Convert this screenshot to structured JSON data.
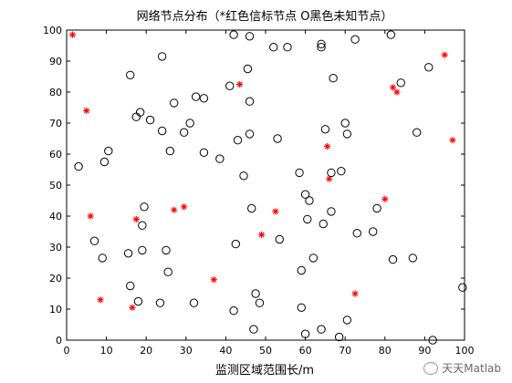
{
  "chart_data": {
    "type": "scatter",
    "title": "网络节点分布（*红色信标节点 O黑色未知节点）",
    "xlabel": "监测区域范围长/m",
    "ylabel": "",
    "xlim": [
      0,
      100
    ],
    "ylim": [
      0,
      100
    ],
    "xticks": [
      0,
      10,
      20,
      30,
      40,
      50,
      60,
      70,
      80,
      90,
      100
    ],
    "yticks": [
      0,
      10,
      20,
      30,
      40,
      50,
      60,
      70,
      80,
      90,
      100
    ],
    "grid": false,
    "legend": "none",
    "series": [
      {
        "marker": "asterisk",
        "color": "#ff0000",
        "points": [
          [
            1.5,
            98.5
          ],
          [
            5,
            74
          ],
          [
            6,
            40
          ],
          [
            8.5,
            13
          ],
          [
            16.5,
            10.5
          ],
          [
            17.5,
            39
          ],
          [
            27,
            42
          ],
          [
            29.5,
            43
          ],
          [
            37,
            19.5
          ],
          [
            43.5,
            82.5
          ],
          [
            49,
            34
          ],
          [
            52.5,
            41.5
          ],
          [
            65.5,
            62.5
          ],
          [
            66,
            52
          ],
          [
            72.5,
            15
          ],
          [
            80,
            45.5
          ],
          [
            82,
            81.5
          ],
          [
            83,
            80
          ],
          [
            95,
            92
          ],
          [
            97,
            64.5
          ]
        ]
      },
      {
        "marker": "circle",
        "color": "#000000",
        "points": [
          [
            3,
            56
          ],
          [
            7,
            32
          ],
          [
            9,
            26.5
          ],
          [
            9.5,
            57.5
          ],
          [
            10.5,
            61
          ],
          [
            15.5,
            28
          ],
          [
            16,
            85.5
          ],
          [
            16,
            17.5
          ],
          [
            17.5,
            72
          ],
          [
            18,
            12.5
          ],
          [
            18.5,
            73.5
          ],
          [
            19,
            37
          ],
          [
            19,
            29
          ],
          [
            19.5,
            43
          ],
          [
            21,
            71
          ],
          [
            23.5,
            12
          ],
          [
            24,
            91.5
          ],
          [
            24,
            67.5
          ],
          [
            25,
            29
          ],
          [
            25.5,
            22
          ],
          [
            26,
            61
          ],
          [
            27,
            76.5
          ],
          [
            29.5,
            67
          ],
          [
            31,
            70
          ],
          [
            32,
            12
          ],
          [
            32.5,
            78.5
          ],
          [
            34.5,
            60.5
          ],
          [
            34.5,
            78
          ],
          [
            38.5,
            58.5
          ],
          [
            41,
            82
          ],
          [
            42,
            98.5
          ],
          [
            42,
            9.5
          ],
          [
            42.5,
            31
          ],
          [
            43,
            64.5
          ],
          [
            44.5,
            53
          ],
          [
            45.5,
            87.5
          ],
          [
            46,
            98
          ],
          [
            46,
            66.5
          ],
          [
            46,
            77
          ],
          [
            46.5,
            42.5
          ],
          [
            47,
            3.5
          ],
          [
            47.5,
            15
          ],
          [
            48.5,
            12
          ],
          [
            52,
            94.5
          ],
          [
            53,
            65
          ],
          [
            53.5,
            32.5
          ],
          [
            55.5,
            94.5
          ],
          [
            58.5,
            54
          ],
          [
            59,
            10.5
          ],
          [
            59,
            22.5
          ],
          [
            60,
            2
          ],
          [
            60,
            47
          ],
          [
            60.5,
            39
          ],
          [
            61,
            45
          ],
          [
            62,
            26.5
          ],
          [
            64,
            94.5
          ],
          [
            64,
            95.5
          ],
          [
            64,
            3.5
          ],
          [
            64.5,
            37.5
          ],
          [
            65,
            68
          ],
          [
            66.5,
            41.5
          ],
          [
            66.5,
            54
          ],
          [
            67,
            84.5
          ],
          [
            68.5,
            1
          ],
          [
            69,
            54.5
          ],
          [
            70,
            70
          ],
          [
            70.5,
            6.5
          ],
          [
            70.5,
            66.5
          ],
          [
            72.5,
            97
          ],
          [
            73,
            34.5
          ],
          [
            77,
            35
          ],
          [
            78,
            42.5
          ],
          [
            81.5,
            98.5
          ],
          [
            82,
            26
          ],
          [
            84,
            83
          ],
          [
            87,
            26.5
          ],
          [
            88,
            67
          ],
          [
            91,
            88
          ],
          [
            92,
            0
          ],
          [
            99.5,
            17
          ]
        ]
      }
    ]
  },
  "watermark": {
    "text": "天天Matlab"
  }
}
